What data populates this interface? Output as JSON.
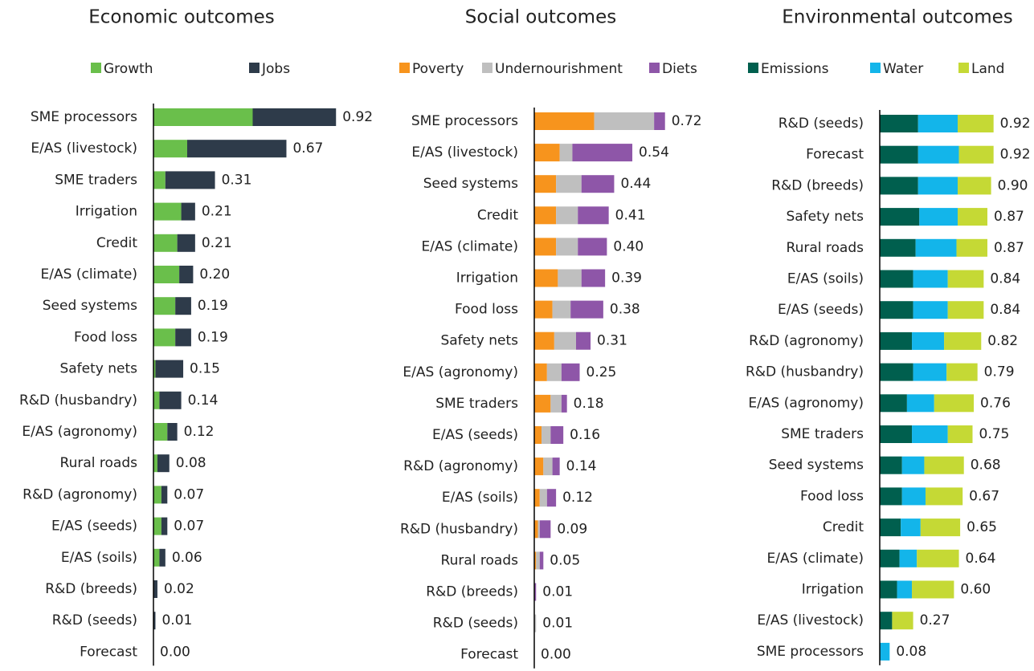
{
  "chart_data": [
    {
      "type": "bar",
      "orientation": "horizontal",
      "stacked": true,
      "title": "Economic outcomes",
      "categories": [
        "SME processors",
        "E/AS (livestock)",
        "SME traders",
        "Irrigation",
        "Credit",
        "E/AS (climate)",
        "Seed systems",
        "Food loss",
        "Safety nets",
        "R&D (husbandry)",
        "E/AS (agronomy)",
        "Rural roads",
        "R&D (agronomy)",
        "E/AS (seeds)",
        "E/AS (soils)",
        "R&D (breeds)",
        "R&D (seeds)",
        "Forecast"
      ],
      "series": [
        {
          "name": "Growth",
          "color": "#6abf4b",
          "values": [
            0.5,
            0.17,
            0.06,
            0.14,
            0.12,
            0.13,
            0.11,
            0.11,
            0.01,
            0.03,
            0.07,
            0.02,
            0.04,
            0.04,
            0.03,
            0,
            0,
            0
          ]
        },
        {
          "name": "Jobs",
          "color": "#2e3b4a",
          "values": [
            0.42,
            0.5,
            0.25,
            0.07,
            0.09,
            0.07,
            0.08,
            0.08,
            0.14,
            0.11,
            0.05,
            0.06,
            0.03,
            0.03,
            0.03,
            0.02,
            0.01,
            0
          ]
        }
      ],
      "totals": [
        0.92,
        0.67,
        0.31,
        0.21,
        0.21,
        0.2,
        0.19,
        0.19,
        0.15,
        0.14,
        0.12,
        0.08,
        0.07,
        0.07,
        0.06,
        0.02,
        0.01,
        0
      ],
      "total_labels": [
        "0.92",
        "0.67",
        "0.31",
        "0.21",
        "0.21",
        "0.20",
        "0.19",
        "0.19",
        "0.15",
        "0.14",
        "0.12",
        "0.08",
        "0.07",
        "0.07",
        "0.06",
        "0.02",
        "0.01",
        "0.00"
      ]
    },
    {
      "type": "bar",
      "orientation": "horizontal",
      "stacked": true,
      "title": "Social outcomes",
      "categories": [
        "SME processors",
        "E/AS (livestock)",
        "Seed systems",
        "Credit",
        "E/AS (climate)",
        "Irrigation",
        "Food loss",
        "Safety nets",
        "E/AS (agronomy)",
        "SME traders",
        "E/AS (seeds)",
        "R&D (agronomy)",
        "E/AS (soils)",
        "R&D (husbandry)",
        "Rural roads",
        "R&D (breeds)",
        "R&D (seeds)",
        "Forecast"
      ],
      "series": [
        {
          "name": "Poverty",
          "color": "#f7941d",
          "values": [
            0.33,
            0.14,
            0.12,
            0.12,
            0.12,
            0.13,
            0.1,
            0.11,
            0.07,
            0.09,
            0.04,
            0.05,
            0.03,
            0.02,
            0.01,
            0,
            0,
            0
          ]
        },
        {
          "name": "Undernourishment",
          "color": "#bfbfbf",
          "values": [
            0.33,
            0.07,
            0.14,
            0.12,
            0.12,
            0.13,
            0.1,
            0.12,
            0.08,
            0.06,
            0.05,
            0.05,
            0.04,
            0.01,
            0.02,
            0,
            0.01,
            0
          ]
        },
        {
          "name": "Diets",
          "color": "#8e56a8",
          "values": [
            0.06,
            0.33,
            0.18,
            0.17,
            0.16,
            0.13,
            0.18,
            0.08,
            0.1,
            0.03,
            0.07,
            0.04,
            0.05,
            0.06,
            0.02,
            0.01,
            0,
            0
          ]
        }
      ],
      "totals": [
        0.72,
        0.54,
        0.44,
        0.41,
        0.4,
        0.39,
        0.38,
        0.31,
        0.25,
        0.18,
        0.16,
        0.14,
        0.12,
        0.09,
        0.05,
        0.01,
        0.01,
        0
      ],
      "total_labels": [
        "0.72",
        "0.54",
        "0.44",
        "0.41",
        "0.40",
        "0.39",
        "0.38",
        "0.31",
        "0.25",
        "0.18",
        "0.16",
        "0.14",
        "0.12",
        "0.09",
        "0.05",
        "0.01",
        "0.01",
        "0.00"
      ]
    },
    {
      "type": "bar",
      "orientation": "horizontal",
      "stacked": true,
      "title": "Environmental outcomes",
      "categories": [
        "R&D (seeds)",
        "Forecast",
        "R&D (breeds)",
        "Safety nets",
        "Rural roads",
        "E/AS (soils)",
        "E/AS (seeds)",
        "R&D (agronomy)",
        "R&D (husbandry)",
        "E/AS (agronomy)",
        "SME traders",
        "Seed systems",
        "Food loss",
        "Credit",
        "E/AS (climate)",
        "Irrigation",
        "E/AS (livestock)",
        "SME processors"
      ],
      "series": [
        {
          "name": "Emissions",
          "color": "#005f4e",
          "values": [
            0.31,
            0.31,
            0.31,
            0.32,
            0.29,
            0.27,
            0.27,
            0.26,
            0.27,
            0.22,
            0.26,
            0.18,
            0.18,
            0.17,
            0.16,
            0.14,
            0.1,
            0
          ]
        },
        {
          "name": "Water",
          "color": "#13b5ea",
          "values": [
            0.32,
            0.33,
            0.32,
            0.31,
            0.33,
            0.28,
            0.28,
            0.26,
            0.27,
            0.22,
            0.29,
            0.18,
            0.19,
            0.16,
            0.14,
            0.12,
            0,
            0.08
          ]
        },
        {
          "name": "Land",
          "color": "#c5d935",
          "values": [
            0.29,
            0.28,
            0.27,
            0.24,
            0.25,
            0.29,
            0.29,
            0.3,
            0.25,
            0.32,
            0.2,
            0.32,
            0.3,
            0.32,
            0.34,
            0.34,
            0.17,
            0
          ]
        }
      ],
      "totals": [
        0.92,
        0.92,
        0.9,
        0.87,
        0.87,
        0.84,
        0.84,
        0.82,
        0.79,
        0.76,
        0.75,
        0.68,
        0.67,
        0.65,
        0.64,
        0.6,
        0.27,
        0.08
      ],
      "total_labels": [
        "0.92",
        "0.92",
        "0.90",
        "0.87",
        "0.87",
        "0.84",
        "0.84",
        "0.82",
        "0.79",
        "0.76",
        "0.75",
        "0.68",
        "0.67",
        "0.65",
        "0.64",
        "0.60",
        "0.27",
        "0.08"
      ]
    }
  ]
}
